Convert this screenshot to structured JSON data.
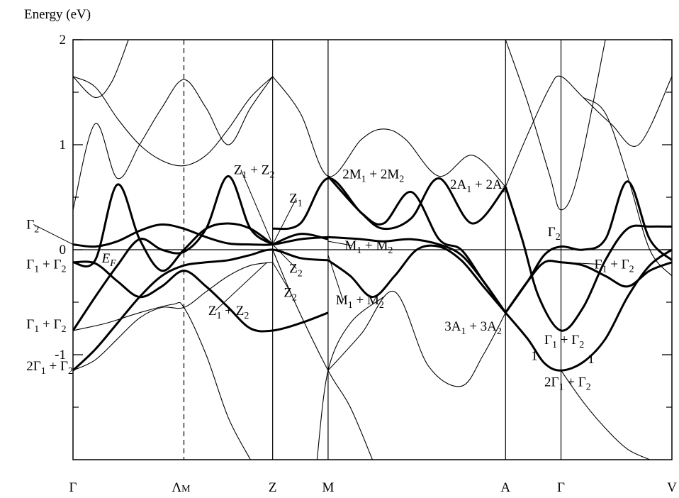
{
  "chart_data": {
    "type": "line",
    "ylabel": "Energy (eV)",
    "ylim": [
      -2.0,
      2.0
    ],
    "y_ticks": [
      2,
      1,
      0,
      -1
    ],
    "y_tick_labels": [
      "2",
      "1",
      "0",
      "-1"
    ],
    "y_minor_ticks": [
      1.5,
      0.5,
      -0.5,
      -1.5
    ],
    "x_points": [
      {
        "label": "Γ",
        "x": 0.0,
        "line": "none"
      },
      {
        "label": "Λ",
        "sub": "M",
        "x": 1.0,
        "line": "dashed"
      },
      {
        "label": "Z",
        "x": 1.8,
        "line": "solid"
      },
      {
        "label": "M",
        "x": 2.3,
        "line": "solid"
      },
      {
        "label": "A",
        "x": 3.9,
        "line": "solid"
      },
      {
        "label": "Γ",
        "x": 4.4,
        "line": "solid"
      },
      {
        "label": "V",
        "x": 5.4,
        "line": "none"
      }
    ],
    "fermi_level": 0.0,
    "bands_thick": [
      {
        "x": [
          0.0,
          0.2,
          0.4,
          0.6,
          0.8,
          1.0,
          1.2,
          1.4,
          1.6,
          1.8,
          2.05,
          2.3
        ],
        "y": [
          0.05,
          0.03,
          0.08,
          0.18,
          0.24,
          0.2,
          0.12,
          0.06,
          0.05,
          0.05,
          0.1,
          0.12
        ]
      },
      {
        "x": [
          0.0,
          0.2,
          0.4,
          0.6,
          0.8,
          1.0,
          1.2,
          1.4,
          1.6,
          1.8
        ],
        "y": [
          -0.12,
          -0.1,
          0.62,
          0.1,
          -0.2,
          0.0,
          0.2,
          0.25,
          0.2,
          0.05
        ]
      },
      {
        "x": [
          0.0,
          0.2,
          0.4,
          0.6,
          0.8,
          1.0,
          1.2,
          1.4,
          1.6,
          1.8
        ],
        "y": [
          -0.77,
          -0.45,
          -0.15,
          0.1,
          0.0,
          -0.02,
          0.2,
          0.7,
          0.2,
          0.05
        ]
      },
      {
        "x": [
          0.0,
          0.2,
          0.4,
          0.6,
          0.8,
          1.0,
          1.2,
          1.4,
          1.6,
          1.8,
          2.05,
          2.3
        ],
        "y": [
          -1.15,
          -0.95,
          -0.7,
          -0.45,
          -0.25,
          -0.15,
          -0.12,
          -0.1,
          -0.05,
          0.0,
          -0.08,
          -0.1
        ]
      },
      {
        "x": [
          0.0,
          0.2,
          0.4,
          0.6,
          0.8,
          1.0,
          1.2,
          1.4,
          1.6,
          1.8,
          2.05,
          2.3
        ],
        "y": [
          -0.12,
          -0.13,
          -0.3,
          -0.45,
          -0.35,
          -0.2,
          -0.35,
          -0.55,
          -0.75,
          -0.77,
          -0.7,
          -0.6
        ]
      },
      {
        "x": [
          1.8,
          2.05,
          2.3
        ],
        "y": [
          0.05,
          0.15,
          0.1
        ]
      },
      {
        "x": [
          2.3,
          2.6,
          2.8,
          3.05,
          3.3,
          3.6,
          3.9
        ],
        "y": [
          0.7,
          0.35,
          0.2,
          0.3,
          0.68,
          0.25,
          0.6
        ]
      },
      {
        "x": [
          1.8,
          2.05,
          2.3,
          2.6,
          2.8,
          3.05,
          3.3,
          3.5,
          3.7,
          3.9
        ],
        "y": [
          0.2,
          0.25,
          0.68,
          0.35,
          0.25,
          0.55,
          0.1,
          0.0,
          -0.3,
          -0.6
        ]
      },
      {
        "x": [
          2.3,
          2.6,
          2.8,
          3.05,
          3.3,
          3.5,
          3.7,
          3.9
        ],
        "y": [
          0.12,
          0.1,
          0.08,
          0.1,
          0.05,
          -0.05,
          -0.3,
          -0.6
        ]
      },
      {
        "x": [
          2.3,
          2.5,
          2.7,
          2.9,
          3.1,
          3.3,
          3.5,
          3.7,
          3.9
        ],
        "y": [
          -0.1,
          -0.25,
          -0.45,
          -0.25,
          0.0,
          0.03,
          -0.1,
          -0.35,
          -0.6
        ]
      },
      {
        "x": [
          3.9,
          4.05,
          4.2,
          4.4,
          4.6,
          4.8,
          5.0,
          5.2,
          5.4
        ],
        "y": [
          0.6,
          0.1,
          -0.45,
          -0.77,
          -0.55,
          -0.1,
          0.2,
          0.22,
          0.22
        ]
      },
      {
        "x": [
          3.9,
          4.1,
          4.25,
          4.4,
          4.6,
          4.8,
          5.0,
          5.2,
          5.4
        ],
        "y": [
          -0.6,
          -0.3,
          -0.12,
          -0.12,
          -0.15,
          -0.25,
          -0.35,
          -0.2,
          -0.12
        ]
      },
      {
        "x": [
          3.9,
          4.1,
          4.25,
          4.4,
          4.6,
          4.8,
          5.0,
          5.2,
          5.4
        ],
        "y": [
          -0.6,
          -0.3,
          -0.05,
          0.03,
          0.0,
          0.1,
          0.65,
          0.1,
          -0.1
        ]
      },
      {
        "x": [
          3.9,
          4.1,
          4.25,
          4.4,
          4.6,
          4.8,
          5.0,
          5.2,
          5.4
        ],
        "y": [
          -0.6,
          -0.85,
          -1.08,
          -1.15,
          -1.07,
          -0.85,
          -0.45,
          -0.15,
          0.0
        ]
      }
    ],
    "bands_thin": [
      {
        "x": [
          0.0,
          0.2,
          0.4,
          0.6,
          0.8,
          1.0,
          1.2,
          1.4,
          1.6,
          1.8
        ],
        "y": [
          1.65,
          1.55,
          1.25,
          1.0,
          0.85,
          0.8,
          0.9,
          1.15,
          1.45,
          1.65
        ]
      },
      {
        "x": [
          0.0,
          0.2,
          0.4,
          0.6,
          0.8,
          1.0,
          1.2,
          1.4,
          1.6,
          1.8
        ],
        "y": [
          0.38,
          1.2,
          0.68,
          1.0,
          1.35,
          1.62,
          1.35,
          1.0,
          1.35,
          1.65
        ]
      },
      {
        "x": [
          0.0,
          0.2,
          0.35,
          0.5
        ],
        "y": [
          1.65,
          1.45,
          1.6,
          2.0
        ]
      },
      {
        "x": [
          0.0,
          0.2,
          0.4,
          0.6,
          0.8,
          1.0,
          1.2,
          1.4,
          1.6,
          1.8
        ],
        "y": [
          -1.15,
          -1.05,
          -0.85,
          -0.65,
          -0.55,
          -0.55,
          -0.4,
          -0.25,
          -0.15,
          -0.12
        ]
      },
      {
        "x": [
          0.0,
          0.3,
          0.6,
          0.9,
          1.0,
          1.2,
          1.4,
          1.6
        ],
        "y": [
          -0.77,
          -0.7,
          -0.6,
          -0.52,
          -0.55,
          -1.0,
          -1.6,
          -2.0
        ]
      },
      {
        "x": [
          1.8,
          2.05,
          2.3,
          2.6,
          2.8,
          3.0,
          3.3,
          3.6,
          3.9
        ],
        "y": [
          1.65,
          1.3,
          0.7,
          1.05,
          1.15,
          1.05,
          0.7,
          0.9,
          0.6
        ]
      },
      {
        "x": [
          2.3,
          2.6,
          2.9,
          3.2,
          3.5,
          3.7,
          3.9
        ],
        "y": [
          -1.15,
          -0.8,
          -0.4,
          -1.1,
          -1.3,
          -1.0,
          -0.6
        ]
      },
      {
        "x": [
          1.8,
          2.0,
          2.3,
          2.5,
          2.7
        ],
        "y": [
          0.0,
          -0.5,
          -1.15,
          -1.5,
          -2.0
        ]
      },
      {
        "x": [
          2.2,
          2.3,
          2.5,
          2.8
        ],
        "y": [
          -2.0,
          -1.15,
          -0.7,
          -0.45
        ]
      },
      {
        "x": [
          3.9,
          4.1,
          4.3,
          4.4,
          4.55,
          4.8
        ],
        "y": [
          2.0,
          1.4,
          0.7,
          0.38,
          0.7,
          2.0
        ]
      },
      {
        "x": [
          3.9,
          4.1,
          4.3,
          4.4,
          4.6,
          4.85,
          5.1,
          5.4
        ],
        "y": [
          0.6,
          1.1,
          1.55,
          1.65,
          1.45,
          1.2,
          1.0,
          1.65
        ]
      },
      {
        "x": [
          4.6,
          4.8,
          5.0,
          5.2,
          5.4
        ],
        "y": [
          1.45,
          1.3,
          0.7,
          0.0,
          -0.25
        ]
      },
      {
        "x": [
          4.4,
          4.6,
          4.8,
          5.0,
          5.2
        ],
        "y": [
          -1.15,
          -1.45,
          -1.7,
          -1.9,
          -2.0
        ]
      }
    ],
    "annotations": [
      {
        "text": "Γ",
        "sub": "2",
        "tx": -0.42,
        "ty": 0.2,
        "px": 0.0,
        "py": 0.05
      },
      {
        "text": "E",
        "sub": "F",
        "tx": 0.26,
        "ty": -0.12,
        "italic": true
      },
      {
        "text": "Γ",
        "sub": "1",
        "tail": " + Γ",
        "sub2": "2",
        "tx": -0.42,
        "ty": -0.18
      },
      {
        "text": "Γ",
        "sub": "1",
        "tail": " + Γ",
        "sub2": "2",
        "tx": -0.42,
        "ty": -0.75
      },
      {
        "text": "2Γ",
        "sub": "1",
        "tail": " + Γ",
        "sub2": "2",
        "tx": -0.42,
        "ty": -1.15
      },
      {
        "text": "Z",
        "sub": "1",
        "tail": " + Z",
        "sub2": "2",
        "tx": 1.45,
        "ty": 0.72,
        "px": 1.8,
        "py": 0.05
      },
      {
        "text": "Z",
        "sub": "1",
        "tx": 1.95,
        "ty": 0.45,
        "px": 1.8,
        "py": 0.05
      },
      {
        "text": "Z",
        "sub": "2",
        "tx": 1.95,
        "ty": -0.22,
        "px": 1.8,
        "py": 0.05
      },
      {
        "text": "Z",
        "sub": "2",
        "tx": 1.9,
        "ty": -0.45,
        "px": 1.8,
        "py": -0.12
      },
      {
        "text": "Z",
        "sub": "1",
        "tail": " + Z",
        "sub2": "2",
        "tx": 1.22,
        "ty": -0.62,
        "px": 1.75,
        "py": -0.12
      },
      {
        "text": "2M",
        "sub": "1",
        "tail": " + 2M",
        "sub2": "2",
        "tx": 2.43,
        "ty": 0.68
      },
      {
        "text": "M",
        "sub": "1",
        "tail": " + M",
        "sub2": "2",
        "tx": 2.45,
        "ty": 0.0,
        "px": 2.3,
        "py": 0.08
      },
      {
        "text": "M",
        "sub": "1",
        "tail": " + M",
        "sub2": "2",
        "tx": 2.37,
        "ty": -0.52,
        "px": 2.3,
        "py": -0.05
      },
      {
        "text": "2A",
        "sub": "1",
        "tail": " + 2A",
        "sub2": "2",
        "tx": 3.4,
        "ty": 0.58
      },
      {
        "text": "3A",
        "sub": "1",
        "tail": " + 3A",
        "sub2": "2",
        "tx": 3.35,
        "ty": -0.77
      },
      {
        "text": "Γ",
        "sub": "2",
        "tx": 4.28,
        "ty": 0.13
      },
      {
        "text": "Γ",
        "sub": "1",
        "tail": " + Γ",
        "sub2": "2",
        "tx": 4.7,
        "ty": -0.18,
        "px": 4.4,
        "py": -0.12
      },
      {
        "text": "Γ",
        "sub": "1",
        "tail": " + Γ",
        "sub2": "2",
        "tx": 4.25,
        "ty": -0.9
      },
      {
        "text": "1",
        "tx": 4.13,
        "ty": -1.05
      },
      {
        "text": "1",
        "tx": 4.64,
        "ty": -1.08
      },
      {
        "text": "2Γ",
        "sub": "1",
        "tail": " + Γ",
        "sub2": "2",
        "tx": 4.25,
        "ty": -1.3
      }
    ]
  }
}
